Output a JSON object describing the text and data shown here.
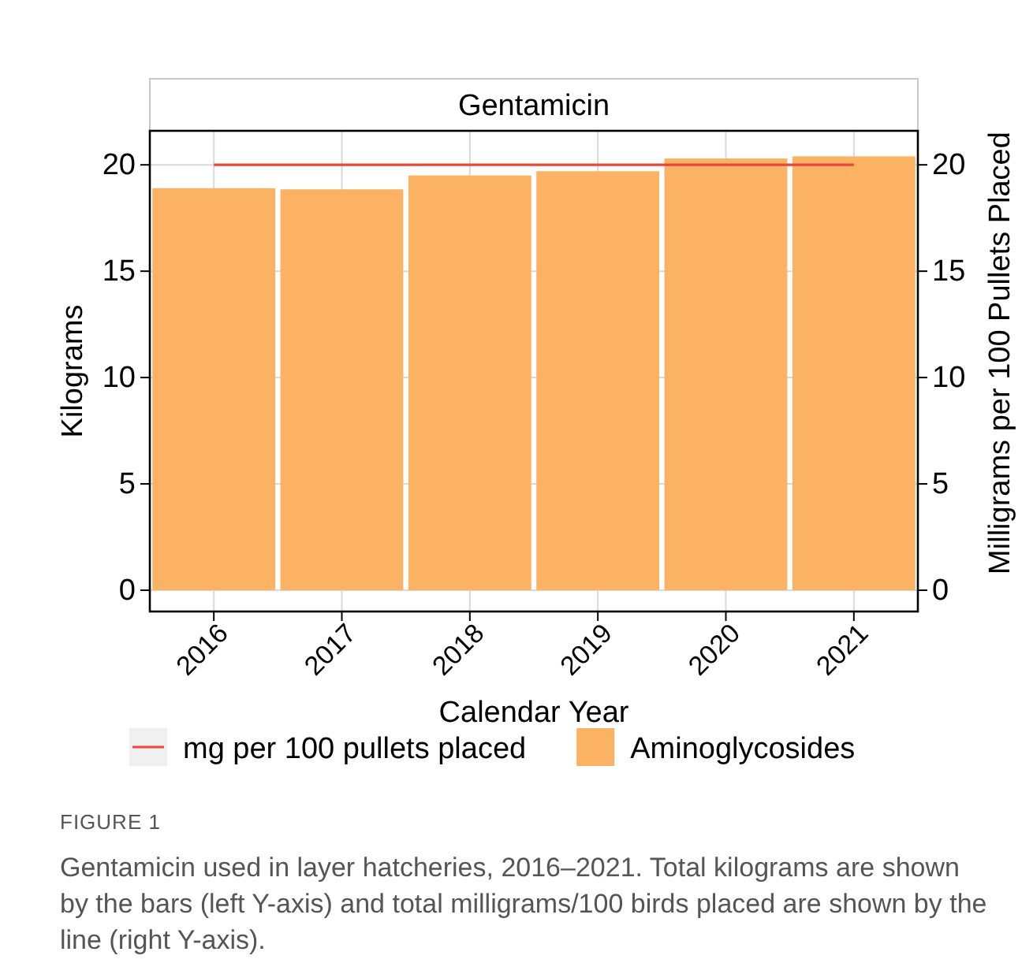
{
  "chart_data": {
    "type": "bar",
    "title": "Gentamicin",
    "xlabel": "Calendar Year",
    "ylabel": "Kilograms",
    "y2label": "Milligrams per 100 Pullets Placed",
    "categories": [
      "2016",
      "2017",
      "2018",
      "2019",
      "2020",
      "2021"
    ],
    "series": [
      {
        "name": "mg per 100 pullets placed",
        "type": "line",
        "axis": "y2",
        "color": "#e8473a",
        "values": [
          20,
          20,
          20,
          20,
          20,
          20
        ]
      },
      {
        "name": "Aminoglycosides",
        "color": "#fbb262",
        "values": [
          18.9,
          18.85,
          19.5,
          19.7,
          20.3,
          20.4
        ]
      }
    ],
    "ylim": [
      -1,
      21.6
    ],
    "yticks": [
      0,
      5,
      10,
      15,
      20
    ],
    "y2lim": [
      -1,
      21.6
    ],
    "y2ticks": [
      0,
      5,
      10,
      15,
      20
    ],
    "grid": true,
    "legend": "bottom",
    "annotations": [
      "FIGURE 1",
      "Gentamicin used in layer hatcheries, 2016–2021. Total kilograms are shown by the bars (left Y-axis) and total milligrams/100 birds placed are shown by the line (right Y-axis)."
    ]
  }
}
